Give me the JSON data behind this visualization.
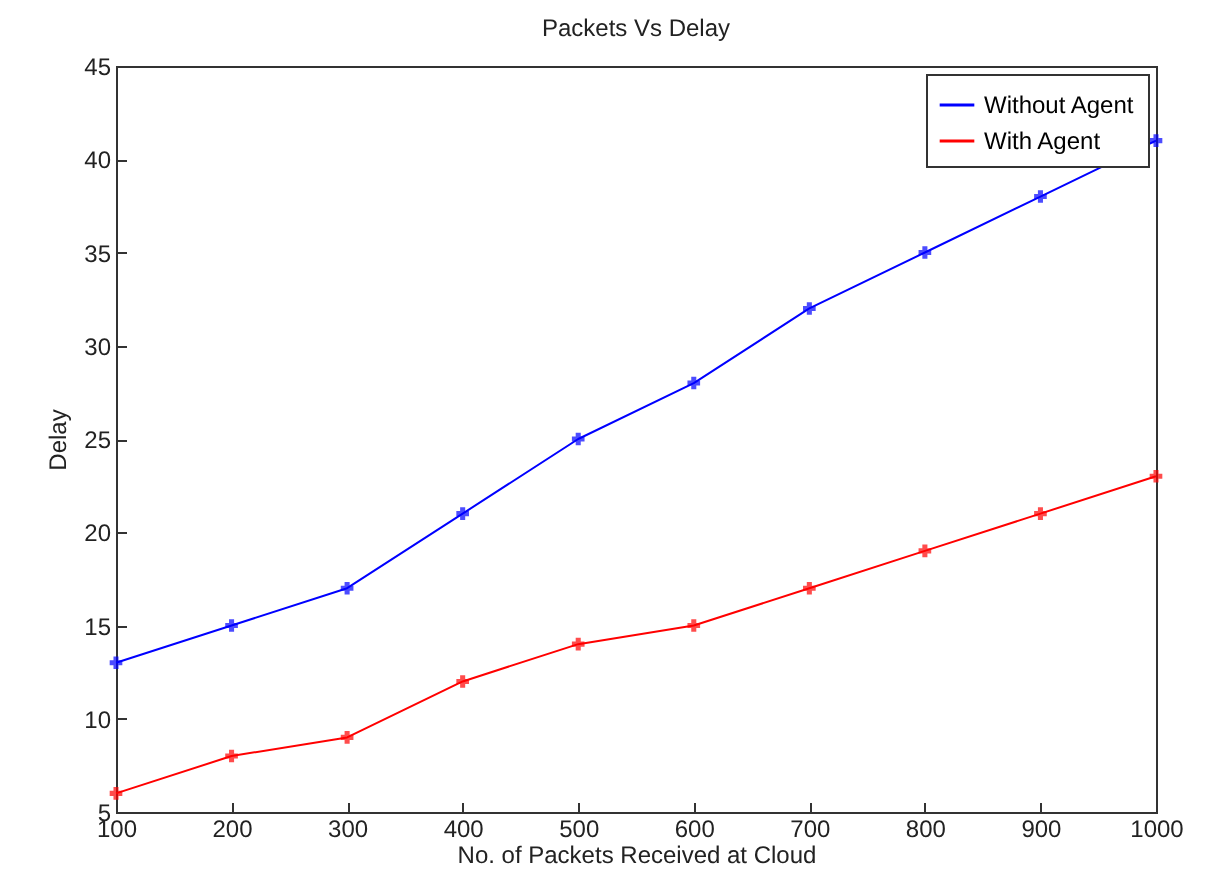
{
  "chart_data": {
    "type": "line",
    "title": "Packets Vs Delay",
    "xlabel": "No. of Packets Received at Cloud",
    "ylabel": "Delay",
    "x": [
      100,
      200,
      300,
      400,
      500,
      600,
      700,
      800,
      900,
      1000
    ],
    "series": [
      {
        "name": "Without Agent",
        "color": "#0000ff",
        "values": [
          13,
          15,
          17,
          21,
          25,
          28,
          32,
          35,
          38,
          41
        ]
      },
      {
        "name": "With Agent",
        "color": "#ff0000",
        "values": [
          6,
          8,
          9,
          12,
          14,
          15,
          17,
          19,
          21,
          23
        ]
      }
    ],
    "xlim": [
      100,
      1000
    ],
    "xticks": [
      100,
      200,
      300,
      400,
      500,
      600,
      700,
      800,
      900,
      1000
    ],
    "ylim": [
      5,
      45
    ],
    "yticks": [
      5,
      10,
      15,
      20,
      25,
      30,
      35,
      40,
      45
    ],
    "grid": false,
    "legend": "top right",
    "marker": "cross",
    "line_style": "solid"
  }
}
